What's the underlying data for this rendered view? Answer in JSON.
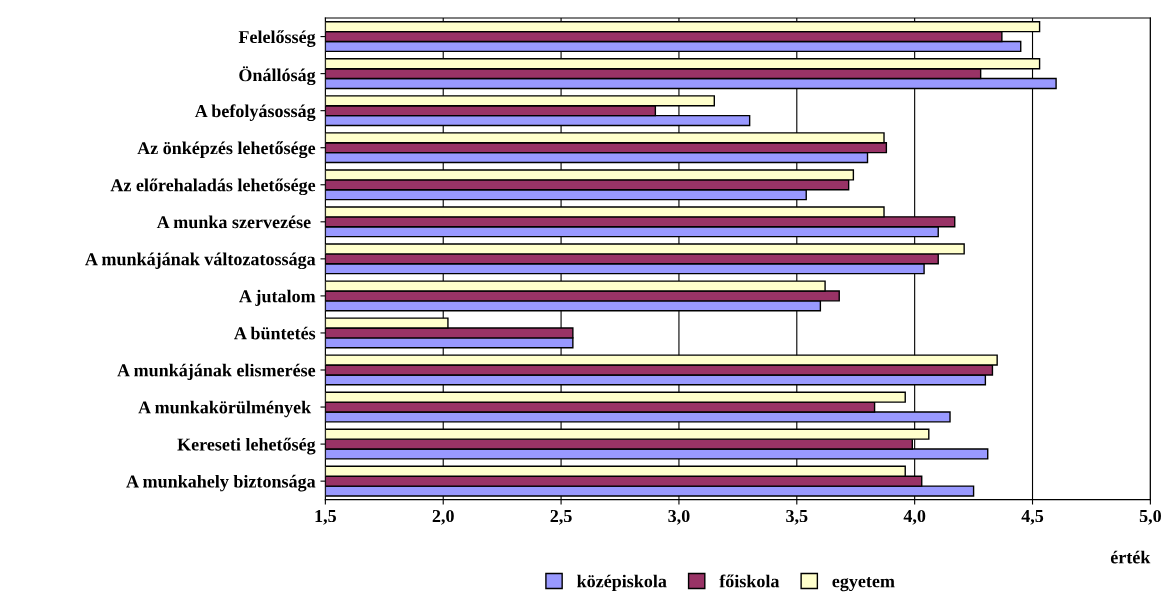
{
  "chart_data": {
    "type": "bar",
    "orientation": "horizontal",
    "xlabel": "érték",
    "categories": [
      "Felelősség",
      "Önállóság",
      "A befolyásosság",
      "Az önképzés lehetősége",
      "Az előrehaladás lehetősége",
      "A munka szervezése ",
      "A munkájának változatossága",
      "A jutalom",
      "A büntetés",
      "A munkájának elismerése",
      "A munkakörülmények ",
      "Kereseti lehetőség",
      "A munkahely biztonsága"
    ],
    "series": [
      {
        "name": "középiskola",
        "color": "#9999ff",
        "values": [
          4.45,
          4.6,
          3.3,
          3.8,
          3.54,
          4.1,
          4.04,
          3.6,
          2.55,
          4.3,
          4.15,
          4.31,
          4.25
        ]
      },
      {
        "name": "főiskola",
        "color": "#993366",
        "values": [
          4.37,
          4.28,
          2.9,
          3.88,
          3.72,
          4.17,
          4.1,
          3.68,
          2.55,
          4.33,
          3.83,
          3.99,
          4.03
        ]
      },
      {
        "name": "egyetem",
        "color": "#ffffcc",
        "values": [
          4.53,
          4.53,
          3.15,
          3.87,
          3.74,
          3.87,
          4.21,
          3.62,
          2.02,
          4.35,
          3.96,
          4.06,
          3.96
        ]
      }
    ],
    "xlim": [
      1.5,
      5.0
    ],
    "xticks": [
      {
        "value": 1.5,
        "label": "1,5"
      },
      {
        "value": 2.0,
        "label": "2,0"
      },
      {
        "value": 2.5,
        "label": "2,5"
      },
      {
        "value": 3.0,
        "label": "3,0"
      },
      {
        "value": 3.5,
        "label": "3,5"
      },
      {
        "value": 4.0,
        "label": "4,0"
      },
      {
        "value": 4.5,
        "label": "4,5"
      },
      {
        "value": 5.0,
        "label": "5,0"
      }
    ],
    "grid": "x",
    "legend": "bottom"
  }
}
